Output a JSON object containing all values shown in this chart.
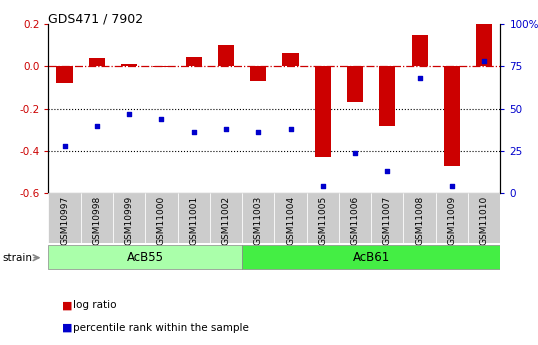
{
  "title": "GDS471 / 7902",
  "samples": [
    "GSM10997",
    "GSM10998",
    "GSM10999",
    "GSM11000",
    "GSM11001",
    "GSM11002",
    "GSM11003",
    "GSM11004",
    "GSM11005",
    "GSM11006",
    "GSM11007",
    "GSM11008",
    "GSM11009",
    "GSM11010"
  ],
  "log_ratio": [
    -0.08,
    0.04,
    0.01,
    -0.005,
    0.045,
    0.1,
    -0.07,
    0.065,
    -0.43,
    -0.17,
    -0.28,
    0.15,
    -0.47,
    0.2
  ],
  "percentile_rank": [
    28,
    40,
    47,
    44,
    36,
    38,
    36,
    38,
    4,
    24,
    13,
    68,
    4,
    78
  ],
  "groups": [
    {
      "label": "AcB55",
      "start": 0,
      "end": 5,
      "color": "#AAFFAA"
    },
    {
      "label": "AcB61",
      "start": 6,
      "end": 13,
      "color": "#44EE44"
    }
  ],
  "bar_color": "#CC0000",
  "dot_color": "#0000CC",
  "ylim_left": [
    -0.6,
    0.2
  ],
  "ylim_right": [
    0,
    100
  ],
  "yticks_left": [
    -0.6,
    -0.4,
    -0.2,
    0.0,
    0.2
  ],
  "yticks_right": [
    0,
    25,
    50,
    75,
    100
  ],
  "ytick_labels_right": [
    "0",
    "25",
    "50",
    "75",
    "100%"
  ],
  "dotted_lines": [
    -0.2,
    -0.4
  ],
  "background_color": "#ffffff",
  "strain_label": "strain",
  "legend_items": [
    {
      "label": "log ratio",
      "color": "#CC0000"
    },
    {
      "label": "percentile rank within the sample",
      "color": "#0000CC"
    }
  ]
}
